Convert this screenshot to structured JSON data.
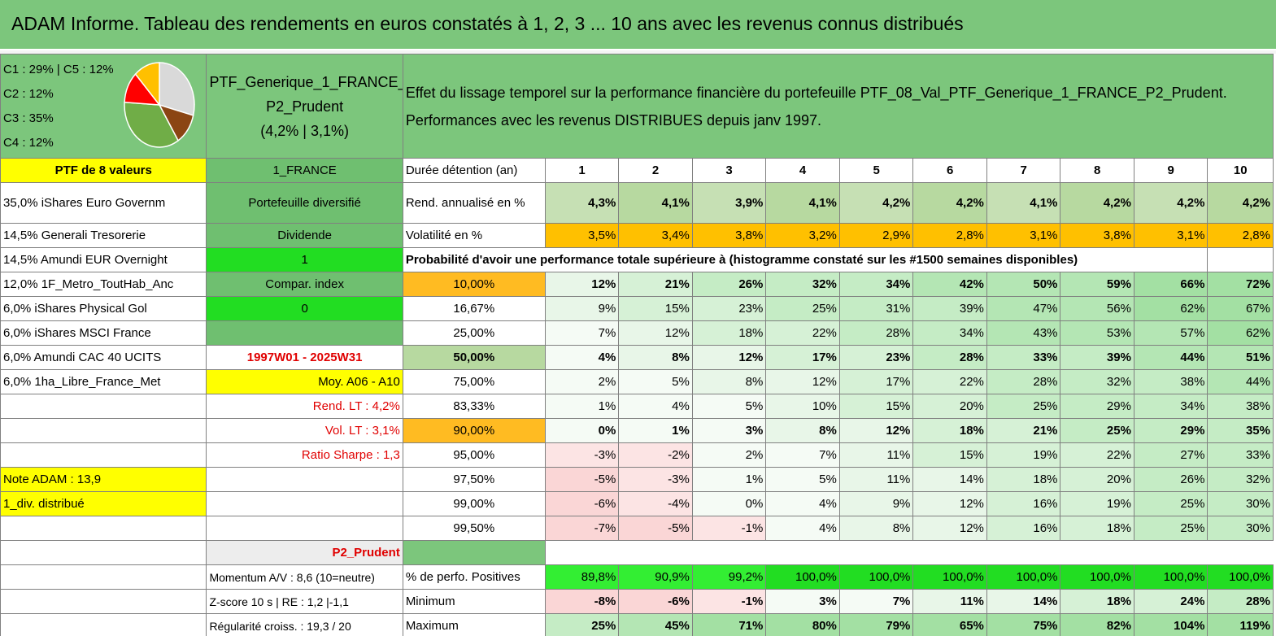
{
  "title": "ADAM Informe. Tableau des rendements en euros constatés à 1, 2, 3 ... 10 ans avec les revenus connus distribués",
  "allocation": {
    "lines": [
      "C1 : 29% | C5 : 12%",
      "C2 : 12%",
      "C3 : 35%",
      "C4 : 12%"
    ],
    "pie": [
      {
        "label": "C1",
        "pct": 29,
        "color": "#d9d9d9"
      },
      {
        "label": "C2",
        "pct": 12,
        "color": "#8b4513"
      },
      {
        "label": "C3",
        "pct": 35,
        "color": "#70ad47"
      },
      {
        "label": "C4",
        "pct": 12,
        "color": "#ff0000"
      },
      {
        "label": "C5",
        "pct": 12,
        "color": "#ffc000"
      }
    ]
  },
  "portfolio": {
    "name_line1": "PTF_Generique_1_FRANCE_",
    "name_line2": "P2_Prudent",
    "name_line3": "(4,2% | 3,1%)"
  },
  "description": {
    "line1": "Effet du lissage temporel sur la performance financière du portefeuille PTF_08_Val_PTF_Generique_1_FRANCE_P2_Prudent.",
    "line2": "Performances avec les revenus DISTRIBUES depuis janv 1997."
  },
  "left": {
    "header": "PTF de 8 valeurs",
    "holdings": [
      "35,0% iShares Euro Governm",
      "14,5% Generali Tresorerie",
      "14,5% Amundi EUR Overnight",
      "12,0% 1F_Metro_ToutHab_Anc",
      "6,0% iShares Physical Gol",
      "6,0% iShares MSCI France",
      "6,0% Amundi CAC 40 UCITS",
      "6,0% 1ha_Libre_France_Met"
    ],
    "note": "Note ADAM : 13,9",
    "div": "1_div. distribué",
    "momentum": "Momentum A/V : 8,6 (10=neutre)",
    "zscore": "Z-score 10 s | RE : 1,2 |-1,1",
    "regularite": "Régularité croiss. : 19,3 / 20"
  },
  "mid": {
    "header": "1_FRANCE",
    "diversifie": "Portefeuille diversifié",
    "dividende": "Dividende",
    "one": "1",
    "compar": "Compar. index",
    "zero": "0",
    "period": "1997W01 - 2025W31",
    "moy": "Moy. A06 - A10",
    "rend_lt": "Rend. LT : 4,2%",
    "vol_lt": "Vol. LT : 3,1%",
    "sharpe": "Ratio Sharpe : 1,3",
    "profile": "P2_Prudent"
  },
  "grid": {
    "duree_label": "Durée détention (an)",
    "years": [
      "1",
      "2",
      "3",
      "4",
      "5",
      "6",
      "7",
      "8",
      "9",
      "10"
    ],
    "rend_label": "Rend. annualisé en %",
    "rend": [
      "4,3%",
      "4,1%",
      "3,9%",
      "4,1%",
      "4,2%",
      "4,2%",
      "4,1%",
      "4,2%",
      "4,2%",
      "4,2%"
    ],
    "vol_label": "Volatilité en %",
    "vol": [
      "3,5%",
      "3,4%",
      "3,8%",
      "3,2%",
      "2,9%",
      "2,8%",
      "3,1%",
      "3,8%",
      "3,1%",
      "2,8%"
    ],
    "prob_label": "Probabilité d'avoir une performance totale supérieure à (histogramme constaté sur les #1500 semaines disponibles)",
    "prob_rows": [
      {
        "q": "10,00%",
        "v": [
          "12%",
          "21%",
          "26%",
          "32%",
          "34%",
          "42%",
          "50%",
          "59%",
          "66%",
          "72%"
        ]
      },
      {
        "q": "16,67%",
        "v": [
          "9%",
          "15%",
          "23%",
          "25%",
          "31%",
          "39%",
          "47%",
          "56%",
          "62%",
          "67%"
        ]
      },
      {
        "q": "25,00%",
        "v": [
          "7%",
          "12%",
          "18%",
          "22%",
          "28%",
          "34%",
          "43%",
          "53%",
          "57%",
          "62%"
        ]
      },
      {
        "q": "50,00%",
        "v": [
          "4%",
          "8%",
          "12%",
          "17%",
          "23%",
          "28%",
          "33%",
          "39%",
          "44%",
          "51%"
        ]
      },
      {
        "q": "75,00%",
        "v": [
          "2%",
          "5%",
          "8%",
          "12%",
          "17%",
          "22%",
          "28%",
          "32%",
          "38%",
          "44%"
        ]
      },
      {
        "q": "83,33%",
        "v": [
          "1%",
          "4%",
          "5%",
          "10%",
          "15%",
          "20%",
          "25%",
          "29%",
          "34%",
          "38%"
        ]
      },
      {
        "q": "90,00%",
        "v": [
          "0%",
          "1%",
          "3%",
          "8%",
          "12%",
          "18%",
          "21%",
          "25%",
          "29%",
          "35%"
        ]
      },
      {
        "q": "95,00%",
        "v": [
          "-3%",
          "-2%",
          "2%",
          "7%",
          "11%",
          "15%",
          "19%",
          "22%",
          "27%",
          "33%"
        ]
      },
      {
        "q": "97,50%",
        "v": [
          "-5%",
          "-3%",
          "1%",
          "5%",
          "11%",
          "14%",
          "18%",
          "20%",
          "26%",
          "32%"
        ]
      },
      {
        "q": "99,00%",
        "v": [
          "-6%",
          "-4%",
          "0%",
          "4%",
          "9%",
          "12%",
          "16%",
          "19%",
          "25%",
          "30%"
        ]
      },
      {
        "q": "99,50%",
        "v": [
          "-7%",
          "-5%",
          "-1%",
          "4%",
          "8%",
          "12%",
          "16%",
          "18%",
          "25%",
          "30%"
        ]
      }
    ],
    "pos_label": "% de perfo. Positives",
    "pos": [
      "89,8%",
      "90,9%",
      "99,2%",
      "100,0%",
      "100,0%",
      "100,0%",
      "100,0%",
      "100,0%",
      "100,0%",
      "100,0%"
    ],
    "min_label": "Minimum",
    "min": [
      "-8%",
      "-6%",
      "-1%",
      "3%",
      "7%",
      "11%",
      "14%",
      "18%",
      "24%",
      "28%"
    ],
    "max_label": "Maximum",
    "max": [
      "25%",
      "45%",
      "71%",
      "80%",
      "79%",
      "65%",
      "75%",
      "82%",
      "104%",
      "119%"
    ]
  }
}
